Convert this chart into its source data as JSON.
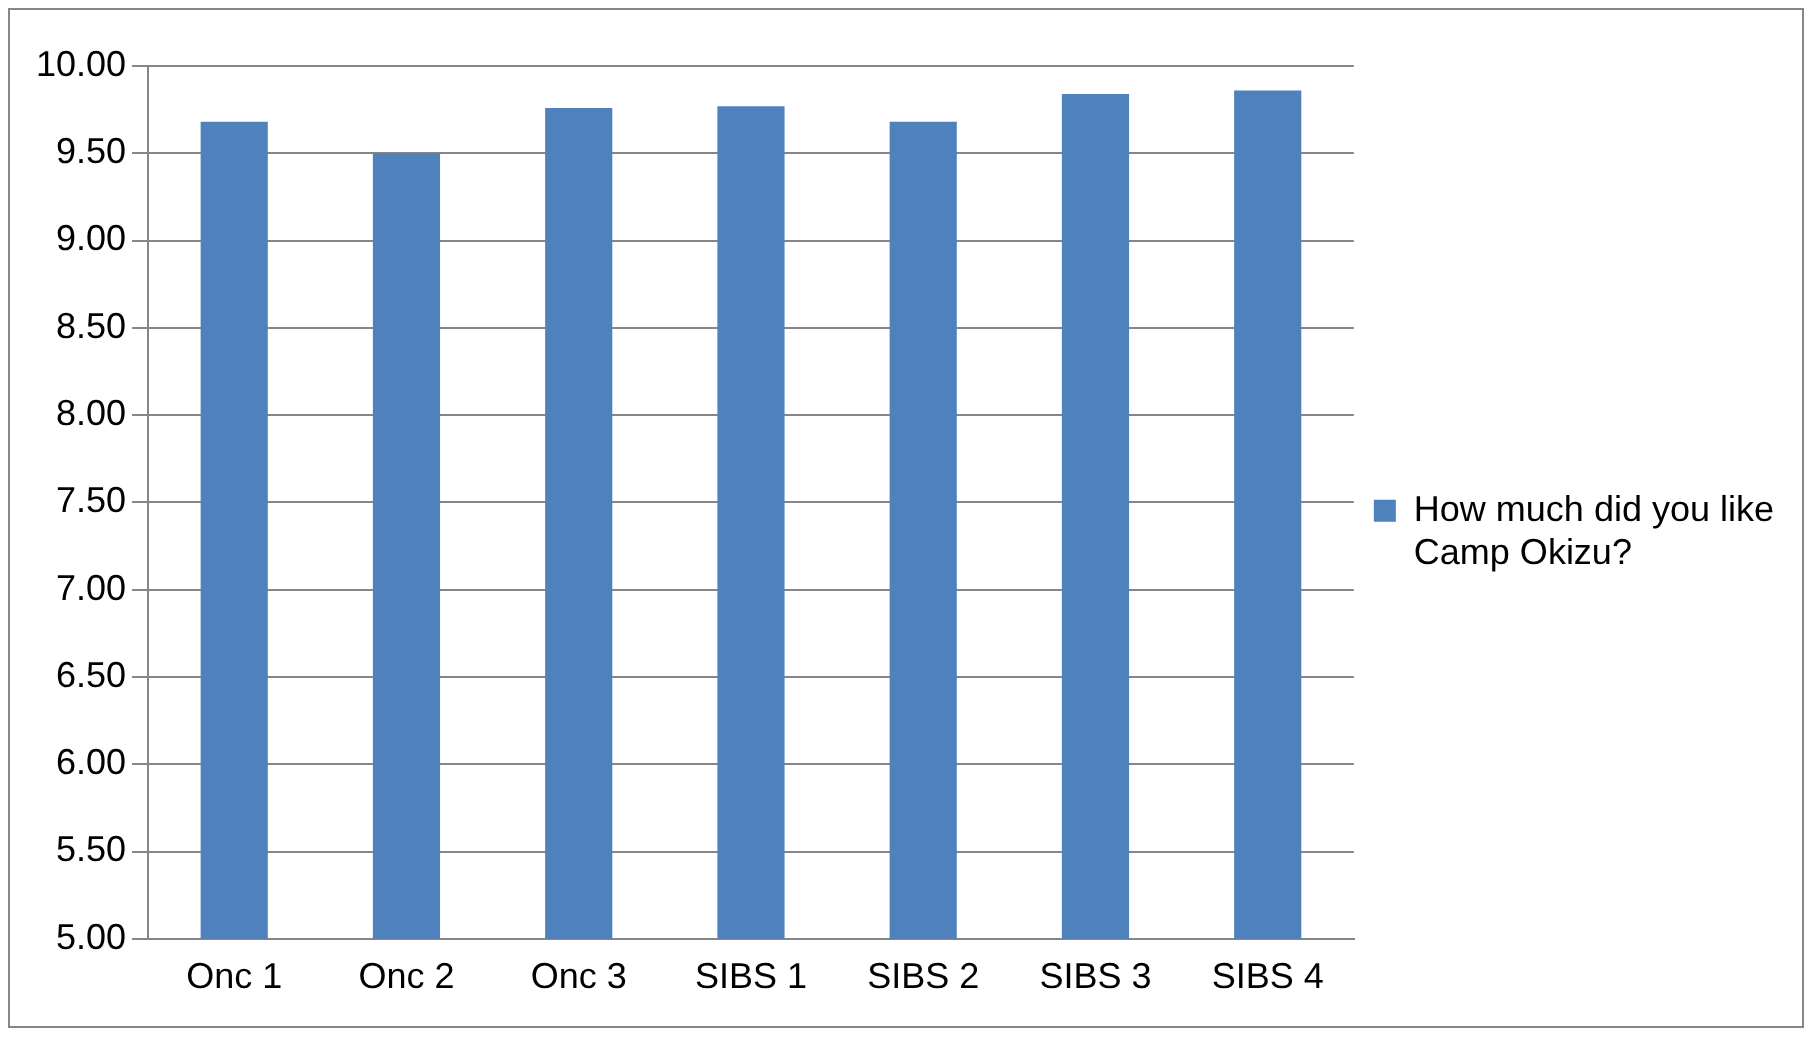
{
  "chart_data": {
    "type": "bar",
    "categories": [
      "Onc 1",
      "Onc 2",
      "Onc 3",
      "SIBS 1",
      "SIBS 2",
      "SIBS 3",
      "SIBS 4"
    ],
    "series": [
      {
        "name": "How much did you like Camp Okizu?",
        "color": "#4f81bd",
        "values": [
          9.68,
          9.5,
          9.76,
          9.77,
          9.68,
          9.84,
          9.86
        ]
      }
    ],
    "ylim": [
      5,
      10
    ],
    "yticks": [
      {
        "value": 5,
        "label": "5.00"
      },
      {
        "value": 5.5,
        "label": "5.50"
      },
      {
        "value": 6,
        "label": "6.00"
      },
      {
        "value": 6.5,
        "label": "6.50"
      },
      {
        "value": 7,
        "label": "7.00"
      },
      {
        "value": 7.5,
        "label": "7.50"
      },
      {
        "value": 8,
        "label": "8.00"
      },
      {
        "value": 8.5,
        "label": "8.50"
      },
      {
        "value": 9,
        "label": "9.00"
      },
      {
        "value": 9.5,
        "label": "9.50"
      },
      {
        "value": 10,
        "label": "10.00"
      }
    ],
    "grid": "y",
    "legend": "right"
  }
}
